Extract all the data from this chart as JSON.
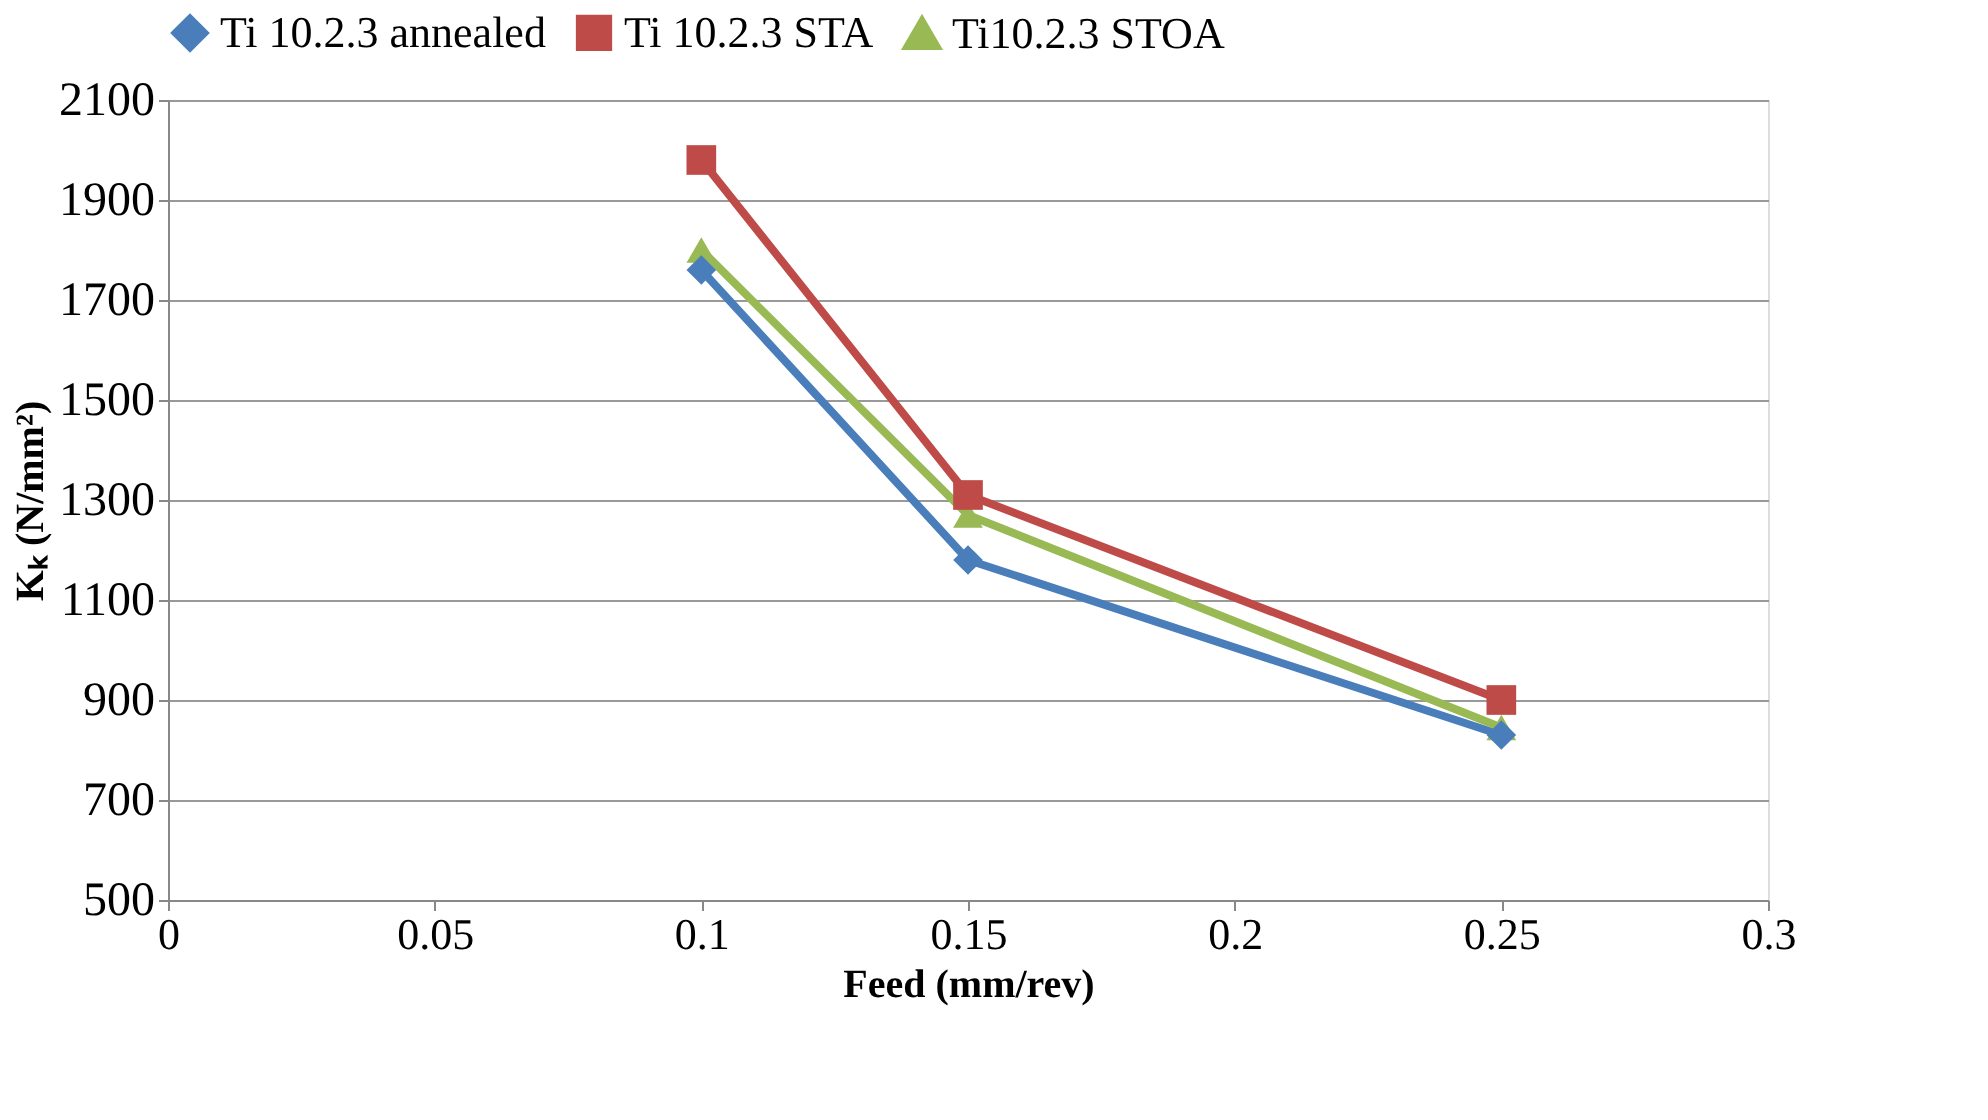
{
  "chart_data": {
    "type": "line",
    "xlabel": "Feed (mm/rev)",
    "ylabel": "Kₖ (N/mm²)",
    "x": [
      0.1,
      0.15,
      0.25
    ],
    "series": [
      {
        "name": "Ti 10.2.3 annealed",
        "color": "#4a7ebb",
        "marker": "diamond",
        "values": [
          1760,
          1180,
          830
        ]
      },
      {
        "name": "Ti 10.2.3 STA",
        "color": "#be4b48",
        "marker": "square",
        "values": [
          1980,
          1310,
          900
        ]
      },
      {
        "name": "Ti10.2.3 STOA",
        "color": "#98b954",
        "marker": "triangle",
        "values": [
          1800,
          1270,
          845
        ]
      }
    ],
    "xlim": [
      0,
      0.3
    ],
    "xticks": [
      0,
      0.05,
      0.1,
      0.15,
      0.2,
      0.25,
      0.3
    ],
    "ylim": [
      500,
      2100
    ],
    "yticks": [
      500,
      700,
      900,
      1100,
      1300,
      1500,
      1700,
      1900,
      2100
    ],
    "grid": "y",
    "legend": "top",
    "line_style": "solid"
  }
}
